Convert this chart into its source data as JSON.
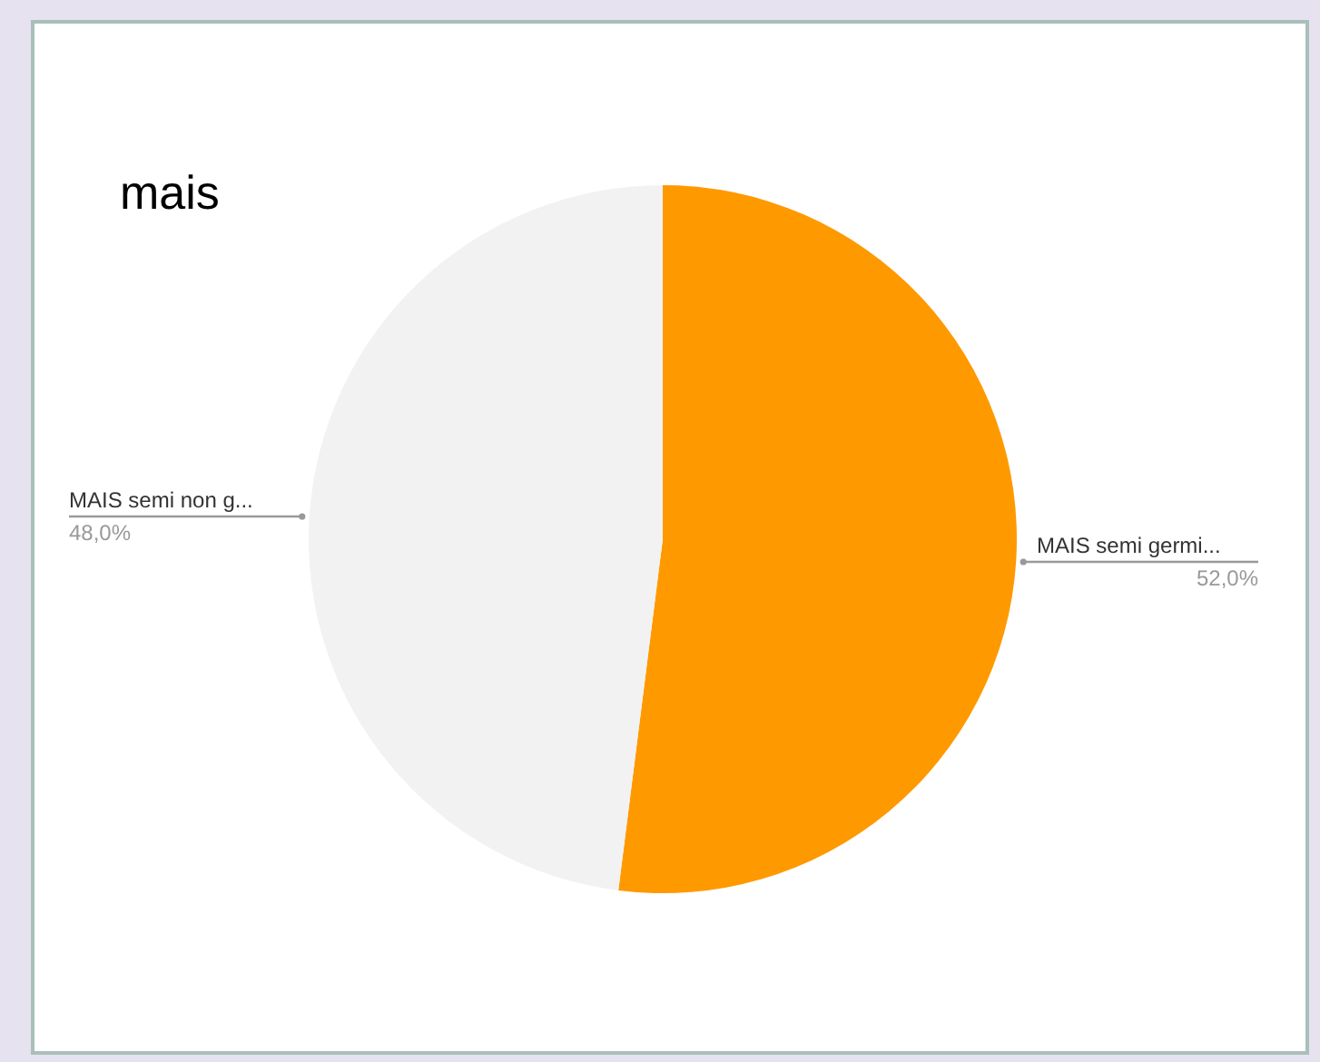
{
  "chart_data": {
    "type": "pie",
    "title": "mais",
    "categories": [
      "MAIS semi germi...",
      "MAIS semi non g..."
    ],
    "values": [
      52.0,
      48.0
    ],
    "colors": [
      "#ff9900",
      "#f2f2f2"
    ],
    "value_labels": [
      "52,0%",
      "48,0%"
    ]
  }
}
